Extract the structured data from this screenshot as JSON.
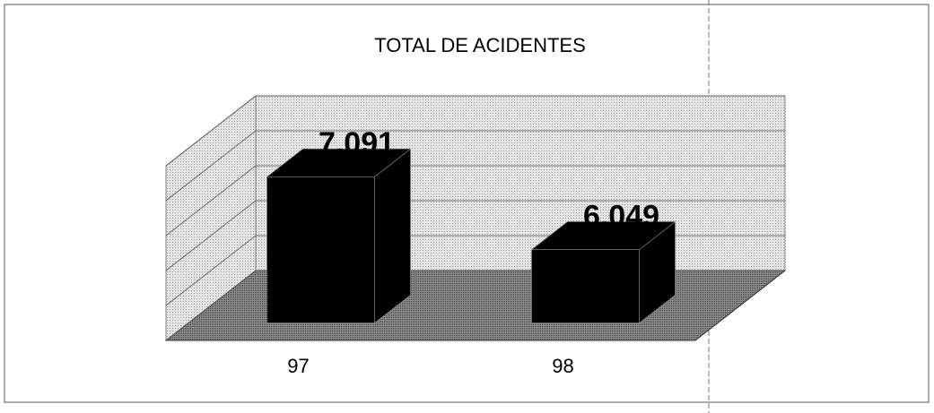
{
  "chart_data": {
    "type": "bar3d",
    "title": "TOTAL DE ACIDENTES",
    "categories": [
      "97",
      "98"
    ],
    "values": [
      7091,
      6049
    ],
    "value_labels": [
      "7.091",
      "6.049"
    ],
    "color": "#000000",
    "ylim": [
      5000,
      7500
    ],
    "yticks": [
      5000,
      5500,
      6000,
      6500,
      7000,
      7500
    ],
    "grid": true
  }
}
